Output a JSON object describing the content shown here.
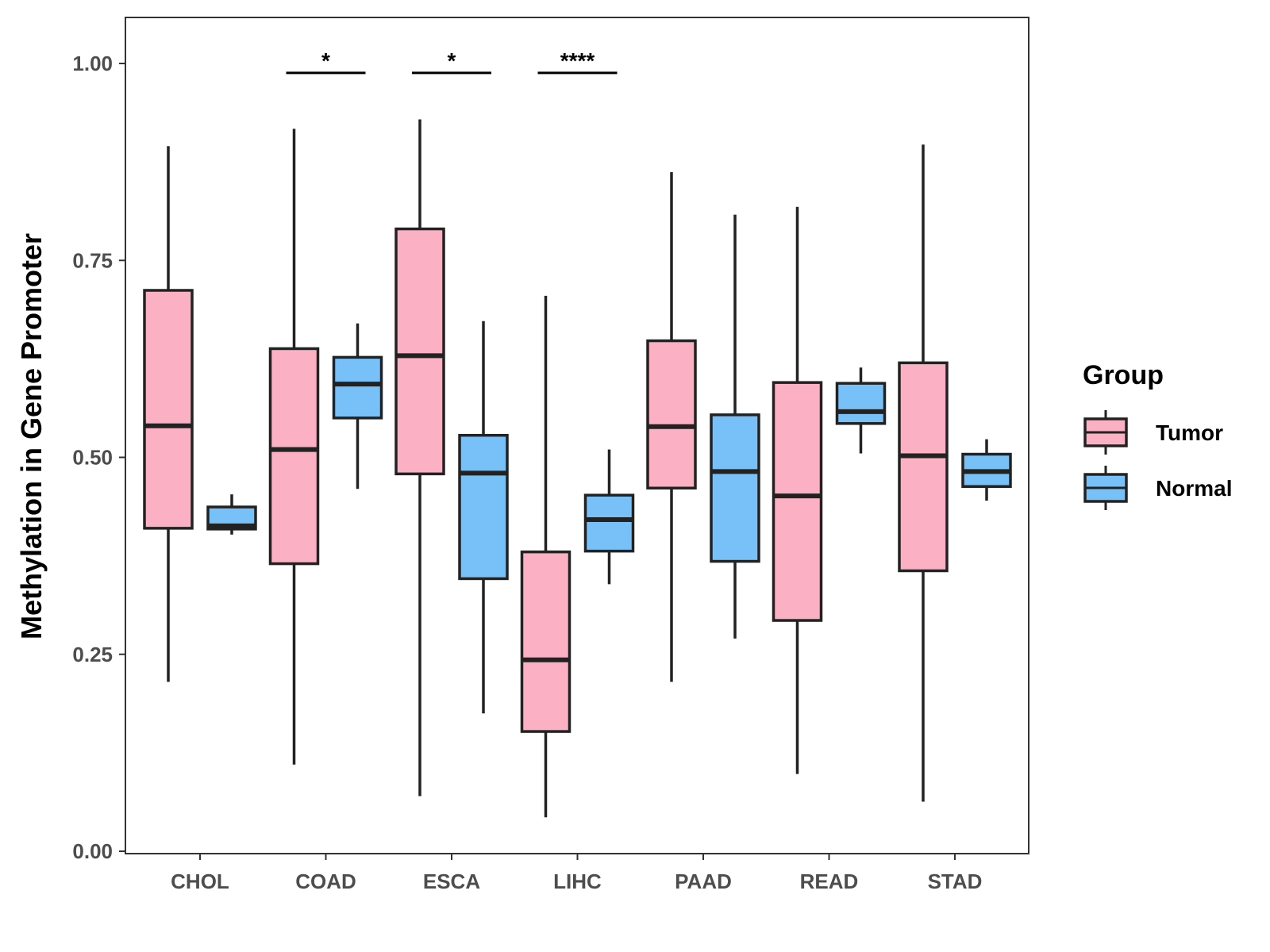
{
  "chart_data": {
    "type": "boxplot",
    "title": "",
    "xlabel": "",
    "ylabel": "Methylation in Gene Promoter",
    "ylim": [
      0,
      1.04
    ],
    "yticks": [
      0.0,
      0.25,
      0.5,
      0.75,
      1.0
    ],
    "ytick_labels": [
      "0.00",
      "0.25",
      "0.50",
      "0.75",
      "1.00"
    ],
    "categories": [
      "CHOL",
      "COAD",
      "ESCA",
      "LIHC",
      "PAAD",
      "READ",
      "STAD"
    ],
    "legend": {
      "title": "Group",
      "position": "right",
      "items": [
        {
          "name": "Tumor",
          "color": "#fbb1c3"
        },
        {
          "name": "Normal",
          "color": "#77c1f8"
        }
      ]
    },
    "series": [
      {
        "name": "Tumor",
        "color": "#fbb1c3",
        "boxes": [
          {
            "category": "CHOL",
            "min": 0.215,
            "q1": 0.41,
            "median": 0.54,
            "q3": 0.712,
            "max": 0.895
          },
          {
            "category": "COAD",
            "min": 0.11,
            "q1": 0.365,
            "median": 0.51,
            "q3": 0.638,
            "max": 0.917
          },
          {
            "category": "ESCA",
            "min": 0.07,
            "q1": 0.479,
            "median": 0.629,
            "q3": 0.79,
            "max": 0.929
          },
          {
            "category": "LIHC",
            "min": 0.043,
            "q1": 0.152,
            "median": 0.243,
            "q3": 0.38,
            "max": 0.705
          },
          {
            "category": "PAAD",
            "min": 0.215,
            "q1": 0.461,
            "median": 0.539,
            "q3": 0.648,
            "max": 0.862
          },
          {
            "category": "READ",
            "min": 0.098,
            "q1": 0.293,
            "median": 0.451,
            "q3": 0.595,
            "max": 0.818
          },
          {
            "category": "STAD",
            "min": 0.063,
            "q1": 0.356,
            "median": 0.502,
            "q3": 0.62,
            "max": 0.897
          }
        ]
      },
      {
        "name": "Normal",
        "color": "#77c1f8",
        "boxes": [
          {
            "category": "CHOL",
            "min": 0.402,
            "q1": 0.409,
            "median": 0.413,
            "q3": 0.437,
            "max": 0.453
          },
          {
            "category": "COAD",
            "min": 0.46,
            "q1": 0.55,
            "median": 0.593,
            "q3": 0.627,
            "max": 0.67
          },
          {
            "category": "ESCA",
            "min": 0.175,
            "q1": 0.346,
            "median": 0.48,
            "q3": 0.528,
            "max": 0.673
          },
          {
            "category": "LIHC",
            "min": 0.339,
            "q1": 0.381,
            "median": 0.421,
            "q3": 0.452,
            "max": 0.51
          },
          {
            "category": "PAAD",
            "min": 0.27,
            "q1": 0.368,
            "median": 0.482,
            "q3": 0.554,
            "max": 0.808
          },
          {
            "category": "READ",
            "min": 0.505,
            "q1": 0.543,
            "median": 0.558,
            "q3": 0.594,
            "max": 0.614
          },
          {
            "category": "STAD",
            "min": 0.445,
            "q1": 0.463,
            "median": 0.482,
            "q3": 0.504,
            "max": 0.523
          }
        ]
      }
    ],
    "significance": [
      {
        "category": "COAD",
        "label": "*",
        "y": 0.988
      },
      {
        "category": "ESCA",
        "label": "*",
        "y": 0.988
      },
      {
        "category": "LIHC",
        "label": "****",
        "y": 0.988
      }
    ]
  }
}
